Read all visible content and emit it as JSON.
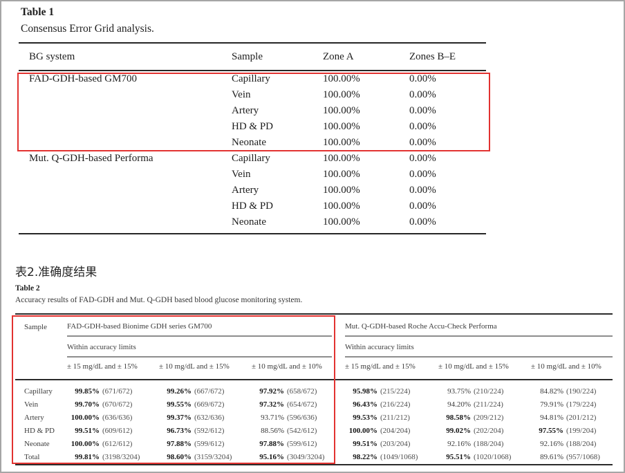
{
  "colors": {
    "highlight_box": "#e23230",
    "rule_dark": "#2a2a2a",
    "rule_gray": "#8d8d8d"
  },
  "table1": {
    "label": "Table 1",
    "caption": "Consensus Error Grid analysis.",
    "headers": {
      "system": "BG system",
      "sample": "Sample",
      "zone_a": "Zone A",
      "zones_be": "Zones B–E"
    },
    "groups": [
      {
        "system": "FAD-GDH-based GM700",
        "highlighted": true,
        "rows": [
          {
            "sample": "Capillary",
            "zone_a": "100.00%",
            "zones_be": "0.00%"
          },
          {
            "sample": "Vein",
            "zone_a": "100.00%",
            "zones_be": "0.00%"
          },
          {
            "sample": "Artery",
            "zone_a": "100.00%",
            "zones_be": "0.00%"
          },
          {
            "sample": "HD & PD",
            "zone_a": "100.00%",
            "zones_be": "0.00%"
          },
          {
            "sample": "Neonate",
            "zone_a": "100.00%",
            "zones_be": "0.00%"
          }
        ]
      },
      {
        "system": "Mut. Q-GDH-based Performa",
        "highlighted": false,
        "rows": [
          {
            "sample": "Capillary",
            "zone_a": "100.00%",
            "zones_be": "0.00%"
          },
          {
            "sample": "Vein",
            "zone_a": "100.00%",
            "zones_be": "0.00%"
          },
          {
            "sample": "Artery",
            "zone_a": "100.00%",
            "zones_be": "0.00%"
          },
          {
            "sample": "HD & PD",
            "zone_a": "100.00%",
            "zones_be": "0.00%"
          },
          {
            "sample": "Neonate",
            "zone_a": "100.00%",
            "zones_be": "0.00%"
          }
        ]
      }
    ]
  },
  "section2": {
    "heading_cn": "表2.准确度结果",
    "table2": {
      "label": "Table 2",
      "caption": "Accuracy results of FAD-GDH and Mut. Q-GDH based blood glucose monitoring system.",
      "sample_header": "Sample",
      "groups": [
        {
          "title": "FAD-GDH-based Bionime GDH series GM700",
          "subtitle": "Within accuracy limits",
          "columns": [
            "± 15 mg/dL and ± 15%",
            "± 10 mg/dL and ± 15%",
            "± 10 mg/dL and ± 10%"
          ],
          "highlighted": true
        },
        {
          "title": "Mut. Q-GDH-based Roche Accu-Check Performa",
          "subtitle": "Within accuracy limits",
          "columns": [
            "± 15 mg/dL and ± 15%",
            "± 10 mg/dL and ± 15%",
            "± 10 mg/dL and ± 10%"
          ],
          "highlighted": false
        }
      ],
      "rows": [
        {
          "sample": "Capillary",
          "cells": [
            {
              "pct": "99.85%",
              "frac": "(671/672)",
              "bold": true
            },
            {
              "pct": "99.26%",
              "frac": "(667/672)",
              "bold": true
            },
            {
              "pct": "97.92%",
              "frac": "(658/672)",
              "bold": true
            },
            {
              "pct": "95.98%",
              "frac": "(215/224)",
              "bold": true
            },
            {
              "pct": "93.75%",
              "frac": "(210/224)",
              "bold": false
            },
            {
              "pct": "84.82%",
              "frac": "(190/224)",
              "bold": false
            }
          ]
        },
        {
          "sample": "Vein",
          "cells": [
            {
              "pct": "99.70%",
              "frac": "(670/672)",
              "bold": true
            },
            {
              "pct": "99.55%",
              "frac": "(669/672)",
              "bold": true
            },
            {
              "pct": "97.32%",
              "frac": "(654/672)",
              "bold": true
            },
            {
              "pct": "96.43%",
              "frac": "(216/224)",
              "bold": true
            },
            {
              "pct": "94.20%",
              "frac": "(211/224)",
              "bold": false
            },
            {
              "pct": "79.91%",
              "frac": "(179/224)",
              "bold": false
            }
          ]
        },
        {
          "sample": "Artery",
          "cells": [
            {
              "pct": "100.00%",
              "frac": "(636/636)",
              "bold": true
            },
            {
              "pct": "99.37%",
              "frac": "(632/636)",
              "bold": true
            },
            {
              "pct": "93.71%",
              "frac": "(596/636)",
              "bold": false
            },
            {
              "pct": "99.53%",
              "frac": "(211/212)",
              "bold": true
            },
            {
              "pct": "98.58%",
              "frac": "(209/212)",
              "bold": true
            },
            {
              "pct": "94.81%",
              "frac": "(201/212)",
              "bold": false
            }
          ]
        },
        {
          "sample": "HD & PD",
          "cells": [
            {
              "pct": "99.51%",
              "frac": "(609/612)",
              "bold": true
            },
            {
              "pct": "96.73%",
              "frac": "(592/612)",
              "bold": true
            },
            {
              "pct": "88.56%",
              "frac": "(542/612)",
              "bold": false
            },
            {
              "pct": "100.00%",
              "frac": "(204/204)",
              "bold": true
            },
            {
              "pct": "99.02%",
              "frac": "(202/204)",
              "bold": true
            },
            {
              "pct": "97.55%",
              "frac": "(199/204)",
              "bold": true
            }
          ]
        },
        {
          "sample": "Neonate",
          "cells": [
            {
              "pct": "100.00%",
              "frac": "(612/612)",
              "bold": true
            },
            {
              "pct": "97.88%",
              "frac": "(599/612)",
              "bold": true
            },
            {
              "pct": "97.88%",
              "frac": "(599/612)",
              "bold": true
            },
            {
              "pct": "99.51%",
              "frac": "(203/204)",
              "bold": true
            },
            {
              "pct": "92.16%",
              "frac": "(188/204)",
              "bold": false
            },
            {
              "pct": "92.16%",
              "frac": "(188/204)",
              "bold": false
            }
          ]
        },
        {
          "sample": "Total",
          "cells": [
            {
              "pct": "99.81%",
              "frac": "(3198/3204)",
              "bold": true
            },
            {
              "pct": "98.60%",
              "frac": "(3159/3204)",
              "bold": true
            },
            {
              "pct": "95.16%",
              "frac": "(3049/3204)",
              "bold": true
            },
            {
              "pct": "98.22%",
              "frac": "(1049/1068)",
              "bold": true
            },
            {
              "pct": "95.51%",
              "frac": "(1020/1068)",
              "bold": true
            },
            {
              "pct": "89.61%",
              "frac": "(957/1068)",
              "bold": false
            }
          ]
        }
      ]
    }
  }
}
